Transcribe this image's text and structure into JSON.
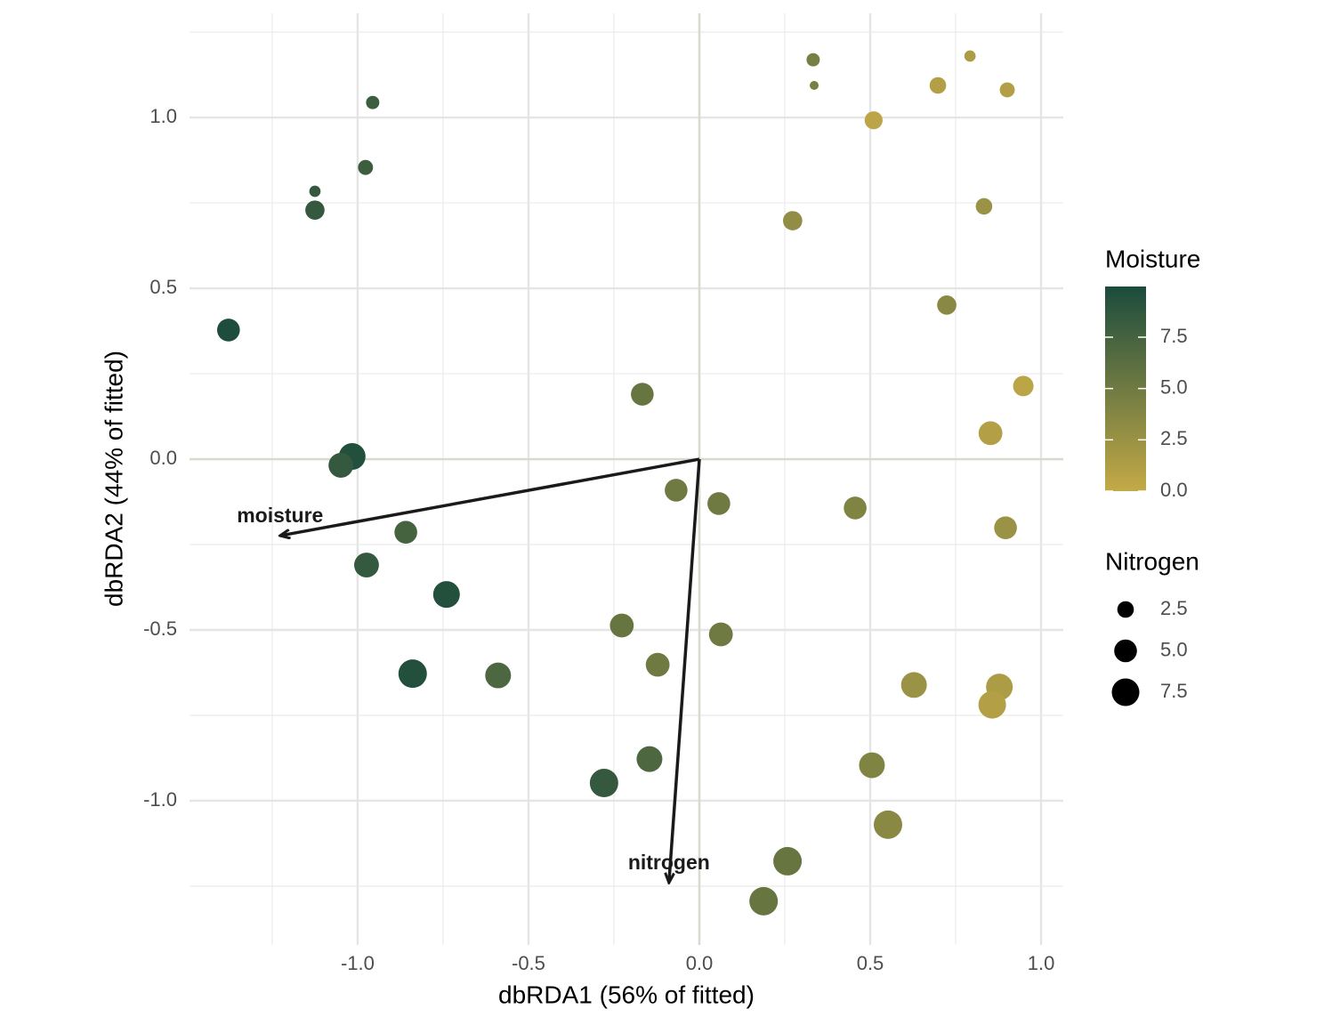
{
  "chart_data": {
    "type": "scatter",
    "xlabel": "dbRDA1 (56% of fitted)",
    "ylabel": "dbRDA2 (44% of fitted)",
    "xlim": [
      -1.492,
      1.065
    ],
    "ylim": [
      -1.422,
      1.305
    ],
    "xticks": [
      {
        "value": -1,
        "label": "-1.0"
      },
      -0.5,
      {
        "value": 0,
        "label": "0.0"
      },
      0.5,
      {
        "value": 1,
        "label": "1.0"
      }
    ],
    "yticks": [
      {
        "value": -1,
        "label": "-1.0"
      },
      -0.5,
      {
        "value": 0,
        "label": "0.0"
      },
      0.5,
      {
        "value": 1,
        "label": "1.0"
      }
    ],
    "x_minor_grid": [
      -1.25,
      -0.75,
      -0.25,
      0.25,
      0.75
    ],
    "y_minor_grid": [
      -1.25,
      -0.75,
      -0.25,
      0.25,
      0.75,
      1.25
    ],
    "grid": true,
    "x": [
      0.333,
      0.336,
      0.792,
      0.698,
      0.901,
      0.51,
      -0.956,
      -0.977,
      -1.125,
      -1.125,
      0.273,
      0.833,
      0.724,
      -1.378,
      0.948,
      -0.167,
      0.852,
      -1.016,
      -1.049,
      -0.068,
      0.057,
      0.456,
      0.896,
      -0.859,
      -0.974,
      -0.74,
      -0.227,
      0.063,
      -0.122,
      -0.839,
      -0.589,
      0.628,
      0.878,
      0.857,
      -0.146,
      -0.279,
      0.505,
      0.552,
      0.258,
      0.188
    ],
    "y": [
      1.169,
      1.094,
      1.18,
      1.094,
      1.081,
      0.992,
      1.044,
      0.854,
      0.784,
      0.729,
      0.698,
      0.74,
      0.451,
      0.378,
      0.214,
      0.19,
      0.076,
      0.008,
      -0.018,
      -0.091,
      -0.13,
      -0.143,
      -0.201,
      -0.214,
      -0.31,
      -0.396,
      -0.487,
      -0.513,
      -0.602,
      -0.628,
      -0.633,
      -0.661,
      -0.667,
      -0.719,
      -0.878,
      -0.948,
      -0.896,
      -1.07,
      -1.177,
      -1.294
    ],
    "moisture": [
      4.5,
      4.5,
      1.5,
      1,
      1,
      0.5,
      8,
      8,
      8.5,
      8.5,
      3,
      2.5,
      3.5,
      9.8,
      0.5,
      5.5,
      1,
      9.5,
      8.5,
      5,
      5,
      4,
      2.5,
      7.5,
      8.5,
      9.5,
      5.5,
      5,
      5,
      9.5,
      7,
      2.5,
      1.5,
      1,
      7,
      8.5,
      4,
      3.5,
      5.5,
      5.5
    ],
    "nitrogen": [
      1.5,
      0.5,
      1,
      2.5,
      2,
      3,
      1.5,
      2,
      1,
      3.5,
      3.5,
      2.5,
      3.5,
      5,
      4,
      5,
      5.5,
      7,
      6,
      5,
      5,
      5,
      5,
      5,
      6,
      7,
      5.5,
      5.5,
      5.5,
      8,
      6.5,
      6.5,
      7,
      7.5,
      6.5,
      8,
      6.5,
      8,
      8,
      8
    ],
    "color_title": "Moisture",
    "color_low": "#c4aa47",
    "color_high": "#1b4b3d",
    "colorlim": [
      0,
      9.97
    ],
    "colorticks": [
      {
        "value": 0,
        "label": "0.0"
      },
      2.5,
      {
        "value": 5,
        "label": "5.0"
      },
      7.5
    ],
    "size_title": "Nitrogen",
    "sizelim": [
      0.5,
      8
    ],
    "sizeticks": [
      2.5,
      {
        "value": 5,
        "label": "5.0"
      },
      7.5
    ],
    "arrows": [
      {
        "label": "moisture",
        "x": -1.227,
        "y": -0.224
      },
      {
        "label": "nitrogen",
        "x": -0.089,
        "y": -1.24
      }
    ]
  }
}
